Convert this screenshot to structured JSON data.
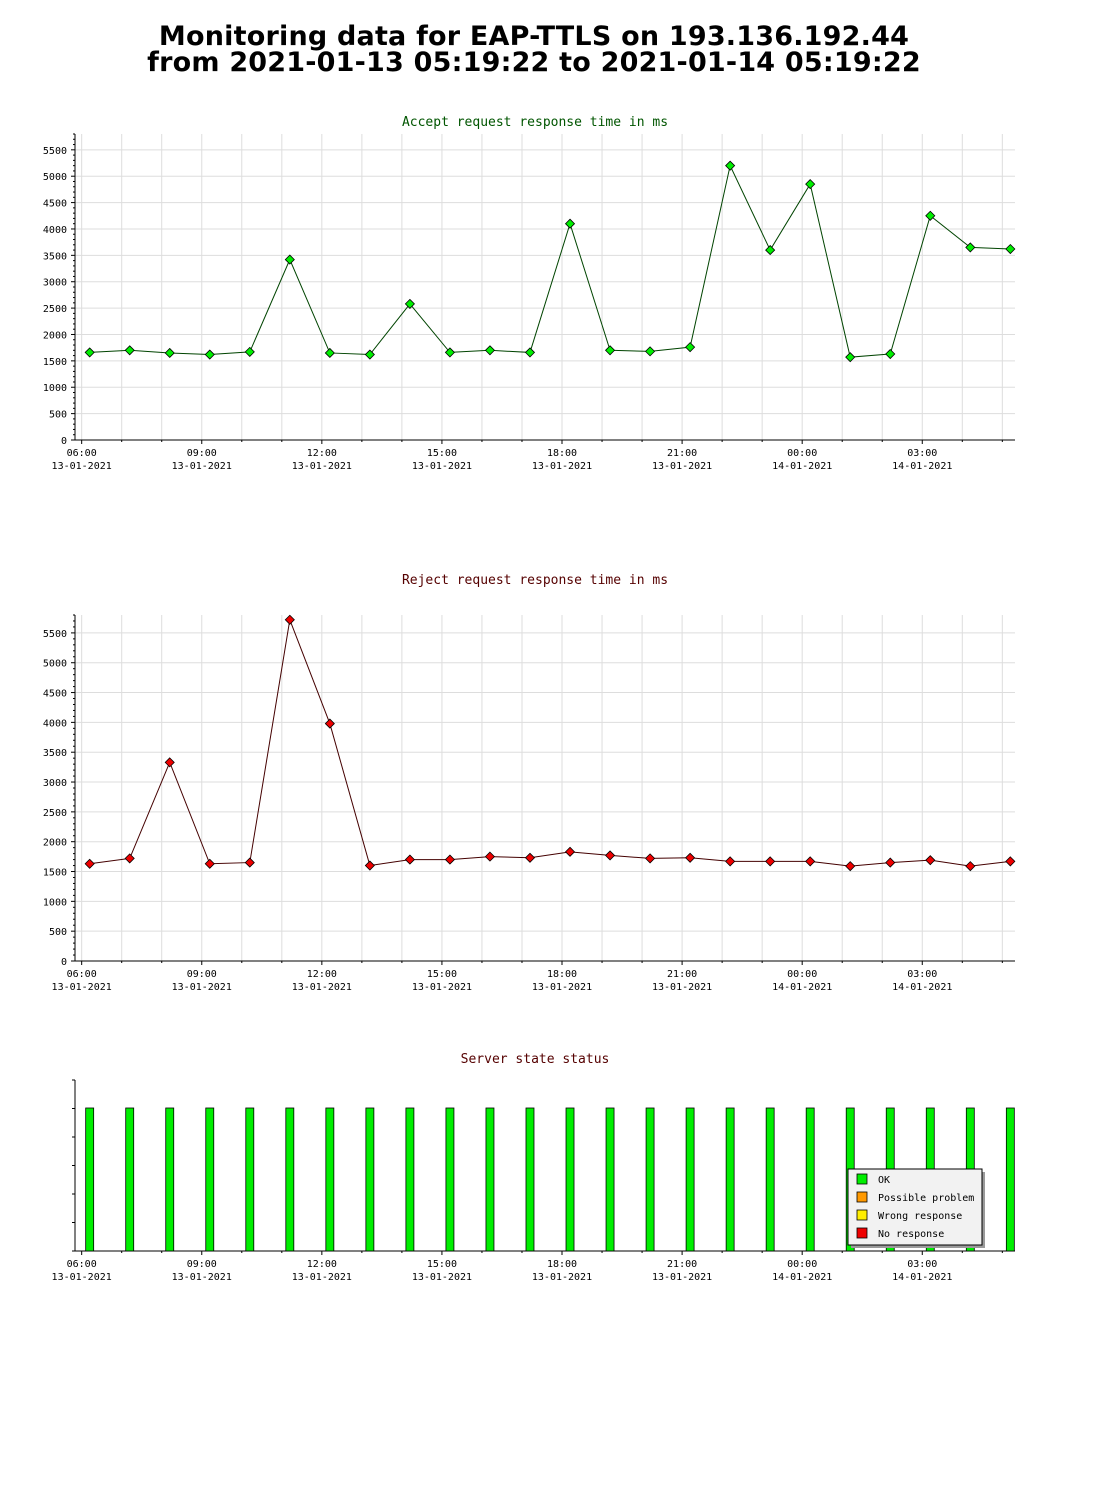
{
  "page": {
    "title_line1": "Monitoring data for EAP-TTLS on 193.136.192.44",
    "title_line2": "from 2021-01-13 05:19:22 to 2021-01-14 05:19:22"
  },
  "colors": {
    "accept_title": "#005500",
    "reject_title": "#550000",
    "state_title": "#550000",
    "accept_marker": "#00ee00",
    "accept_line": "#004400",
    "reject_marker": "#ee0000",
    "reject_line": "#440000",
    "ok": "#00ee00",
    "possible_problem": "#ff9900",
    "wrong_response": "#ffee00",
    "no_response": "#ee0000",
    "grid": "#dddddd"
  },
  "chart_data": [
    {
      "type": "line",
      "title": "Accept request response time in ms",
      "xlabel": "",
      "ylabel": "",
      "ylim": [
        0,
        5800
      ],
      "y_ticks": [
        0,
        500,
        1000,
        1500,
        2000,
        2500,
        3000,
        3500,
        4000,
        4500,
        5000,
        5500
      ],
      "xlim": [
        "2021-01-13 05:50",
        "2021-01-14 05:19"
      ],
      "x_tick_labels": [
        {
          "time": "06:00",
          "date": "13-01-2021"
        },
        {
          "time": "09:00",
          "date": "13-01-2021"
        },
        {
          "time": "12:00",
          "date": "13-01-2021"
        },
        {
          "time": "15:00",
          "date": "13-01-2021"
        },
        {
          "time": "18:00",
          "date": "13-01-2021"
        },
        {
          "time": "21:00",
          "date": "13-01-2021"
        },
        {
          "time": "00:00",
          "date": "14-01-2021"
        },
        {
          "time": "03:00",
          "date": "14-01-2021"
        }
      ],
      "grid": true,
      "x": [
        "2021-01-13 06:12",
        "2021-01-13 07:12",
        "2021-01-13 08:12",
        "2021-01-13 09:12",
        "2021-01-13 10:12",
        "2021-01-13 11:12",
        "2021-01-13 12:12",
        "2021-01-13 13:12",
        "2021-01-13 14:12",
        "2021-01-13 15:12",
        "2021-01-13 16:12",
        "2021-01-13 17:12",
        "2021-01-13 18:12",
        "2021-01-13 19:12",
        "2021-01-13 20:12",
        "2021-01-13 21:12",
        "2021-01-13 22:12",
        "2021-01-13 23:12",
        "2021-01-14 00:12",
        "2021-01-14 01:12",
        "2021-01-14 02:12",
        "2021-01-14 03:12",
        "2021-01-14 04:12",
        "2021-01-14 05:12"
      ],
      "series": [
        {
          "values": [
            1660,
            1700,
            1650,
            1620,
            1670,
            3420,
            1650,
            1620,
            2580,
            1660,
            1700,
            1660,
            4100,
            1700,
            1680,
            1760,
            5200,
            3600,
            4850,
            1570,
            1630,
            4250,
            3650,
            3620
          ]
        }
      ]
    },
    {
      "type": "line",
      "title": "Reject request response time in ms",
      "xlabel": "",
      "ylabel": "",
      "ylim": [
        0,
        5800
      ],
      "y_ticks": [
        0,
        500,
        1000,
        1500,
        2000,
        2500,
        3000,
        3500,
        4000,
        4500,
        5000,
        5500
      ],
      "xlim": [
        "2021-01-13 05:50",
        "2021-01-14 05:19"
      ],
      "x_tick_labels": [
        {
          "time": "06:00",
          "date": "13-01-2021"
        },
        {
          "time": "09:00",
          "date": "13-01-2021"
        },
        {
          "time": "12:00",
          "date": "13-01-2021"
        },
        {
          "time": "15:00",
          "date": "13-01-2021"
        },
        {
          "time": "18:00",
          "date": "13-01-2021"
        },
        {
          "time": "21:00",
          "date": "13-01-2021"
        },
        {
          "time": "00:00",
          "date": "14-01-2021"
        },
        {
          "time": "03:00",
          "date": "14-01-2021"
        }
      ],
      "grid": true,
      "x": [
        "2021-01-13 06:12",
        "2021-01-13 07:12",
        "2021-01-13 08:12",
        "2021-01-13 09:12",
        "2021-01-13 10:12",
        "2021-01-13 11:12",
        "2021-01-13 12:12",
        "2021-01-13 13:12",
        "2021-01-13 14:12",
        "2021-01-13 15:12",
        "2021-01-13 16:12",
        "2021-01-13 17:12",
        "2021-01-13 18:12",
        "2021-01-13 19:12",
        "2021-01-13 20:12",
        "2021-01-13 21:12",
        "2021-01-13 22:12",
        "2021-01-13 23:12",
        "2021-01-14 00:12",
        "2021-01-14 01:12",
        "2021-01-14 02:12",
        "2021-01-14 03:12",
        "2021-01-14 04:12",
        "2021-01-14 05:12"
      ],
      "series": [
        {
          "values": [
            1630,
            1720,
            3330,
            1630,
            1650,
            5720,
            3980,
            1600,
            1700,
            1700,
            1750,
            1730,
            1830,
            1770,
            1720,
            1730,
            1670,
            1670,
            1670,
            1590,
            1650,
            1690,
            1590,
            1670
          ]
        }
      ]
    },
    {
      "type": "bar",
      "title": "Server state status",
      "xlim": [
        "2021-01-13 05:50",
        "2021-01-14 05:19"
      ],
      "x_tick_labels": [
        {
          "time": "06:00",
          "date": "13-01-2021"
        },
        {
          "time": "09:00",
          "date": "13-01-2021"
        },
        {
          "time": "12:00",
          "date": "13-01-2021"
        },
        {
          "time": "15:00",
          "date": "13-01-2021"
        },
        {
          "time": "18:00",
          "date": "13-01-2021"
        },
        {
          "time": "21:00",
          "date": "13-01-2021"
        },
        {
          "time": "00:00",
          "date": "14-01-2021"
        },
        {
          "time": "03:00",
          "date": "14-01-2021"
        }
      ],
      "grid": false,
      "legend_position": "bottom-right",
      "legend": [
        {
          "label": "OK",
          "color": "#00ee00"
        },
        {
          "label": "Possible problem",
          "color": "#ff9900"
        },
        {
          "label": "Wrong response",
          "color": "#ffee00"
        },
        {
          "label": "No response",
          "color": "#ee0000"
        }
      ],
      "x": [
        "2021-01-13 06:12",
        "2021-01-13 07:12",
        "2021-01-13 08:12",
        "2021-01-13 09:12",
        "2021-01-13 10:12",
        "2021-01-13 11:12",
        "2021-01-13 12:12",
        "2021-01-13 13:12",
        "2021-01-13 14:12",
        "2021-01-13 15:12",
        "2021-01-13 16:12",
        "2021-01-13 17:12",
        "2021-01-13 18:12",
        "2021-01-13 19:12",
        "2021-01-13 20:12",
        "2021-01-13 21:12",
        "2021-01-13 22:12",
        "2021-01-13 23:12",
        "2021-01-14 00:12",
        "2021-01-14 01:12",
        "2021-01-14 02:12",
        "2021-01-14 03:12",
        "2021-01-14 04:12",
        "2021-01-14 05:12"
      ],
      "states": [
        "OK",
        "OK",
        "OK",
        "OK",
        "OK",
        "OK",
        "OK",
        "OK",
        "OK",
        "OK",
        "OK",
        "OK",
        "OK",
        "OK",
        "OK",
        "OK",
        "OK",
        "OK",
        "OK",
        "OK",
        "OK",
        "OK",
        "OK",
        "OK"
      ]
    }
  ]
}
